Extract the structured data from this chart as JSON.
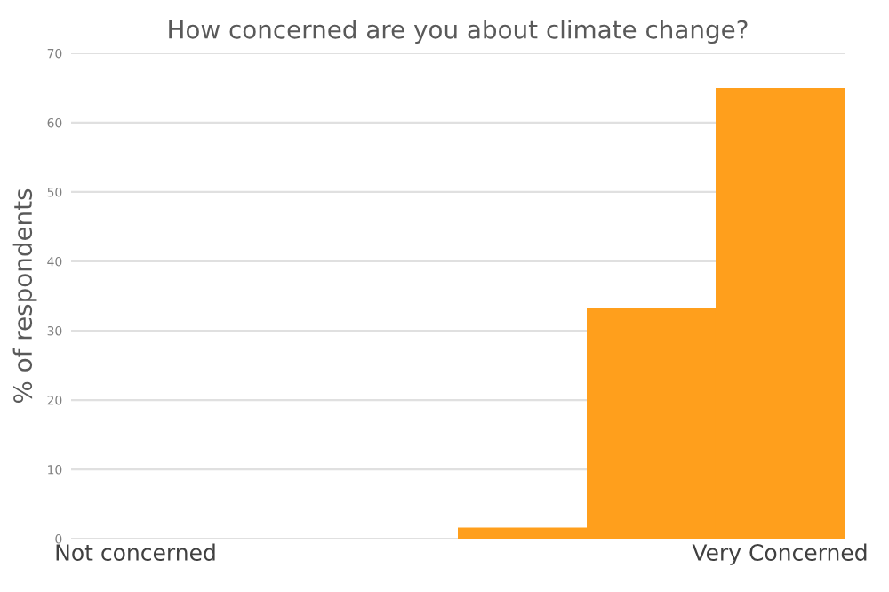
{
  "chart_data": {
    "type": "bar",
    "title": "How concerned are you about climate change?",
    "ylabel": "% of respondents",
    "categories": [
      "Not concerned",
      null,
      null,
      null,
      null,
      "Very Concerned"
    ],
    "values": [
      0,
      0,
      0,
      1.6,
      33.3,
      65
    ],
    "color": "#ff9f1c",
    "ylim": [
      0,
      70
    ],
    "yticks": [
      0,
      10,
      20,
      30,
      40,
      50,
      60,
      70
    ],
    "grid": "y"
  }
}
